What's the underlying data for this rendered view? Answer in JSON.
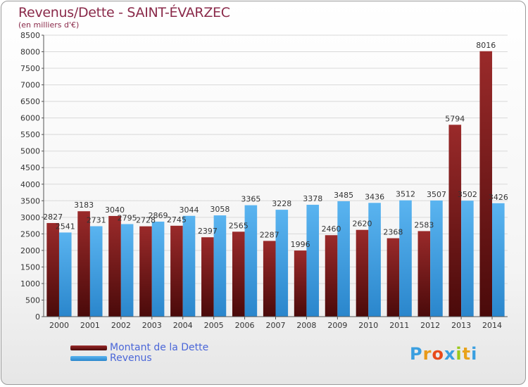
{
  "header": {
    "title": "Revenus/Dette - SAINT-ÉVARZEC",
    "subtitle": "(en milliers d'€)"
  },
  "legend": {
    "debt_label": "Montant de la Dette",
    "revenue_label": "Revenus"
  },
  "logo": {
    "text": "Proxiti",
    "letters": [
      "P",
      "r",
      "o",
      "x",
      "i",
      "t",
      "i"
    ],
    "colors": [
      "#3a9fe0",
      "#e89a1a",
      "#e84a1a",
      "#3a9fe0",
      "#9ac81a",
      "#e8a21a",
      "#3a9fe0"
    ]
  },
  "colors": {
    "debt": "#7a1a1a",
    "revenue": "#3a9ce8",
    "grid": "#d9d9d9",
    "axis": "#555555"
  },
  "chart_data": {
    "type": "bar",
    "title": "Revenus/Dette - SAINT-ÉVARZEC",
    "subtitle": "(en milliers d'€)",
    "categories": [
      "2000",
      "2001",
      "2002",
      "2003",
      "2004",
      "2005",
      "2006",
      "2007",
      "2008",
      "2009",
      "2010",
      "2011",
      "2012",
      "2013",
      "2014"
    ],
    "series": [
      {
        "name": "Montant de la Dette",
        "values": [
          2827,
          3183,
          3040,
          2728,
          2745,
          2397,
          2565,
          2287,
          1996,
          2460,
          2620,
          2368,
          2583,
          5794,
          8016
        ],
        "labels": [
          "2827",
          "3183",
          "3040",
          "2728",
          "2745",
          "2397",
          "2565",
          "2287",
          "1996",
          "2460",
          "2620",
          "2368",
          "2583",
          "5794",
          "8016"
        ]
      },
      {
        "name": "Revenus",
        "values": [
          2541,
          2731,
          2795,
          2869,
          3044,
          3058,
          3365,
          3228,
          3378,
          3485,
          3436,
          3512,
          3507,
          3502,
          3426
        ],
        "labels": [
          "2541",
          "2731",
          "2795",
          "2869",
          "3044",
          "3058",
          "3365",
          "3228",
          "3378",
          "3485",
          "3436",
          "3512",
          "3507",
          "3502",
          "3426"
        ]
      }
    ],
    "yticks": [
      0,
      500,
      1000,
      1500,
      2000,
      2500,
      3000,
      3500,
      4000,
      4500,
      5000,
      5500,
      6000,
      6500,
      7000,
      7500,
      8000,
      8500
    ],
    "ylim": [
      0,
      8500
    ],
    "grid": true,
    "legend_position": "bottom-left"
  }
}
